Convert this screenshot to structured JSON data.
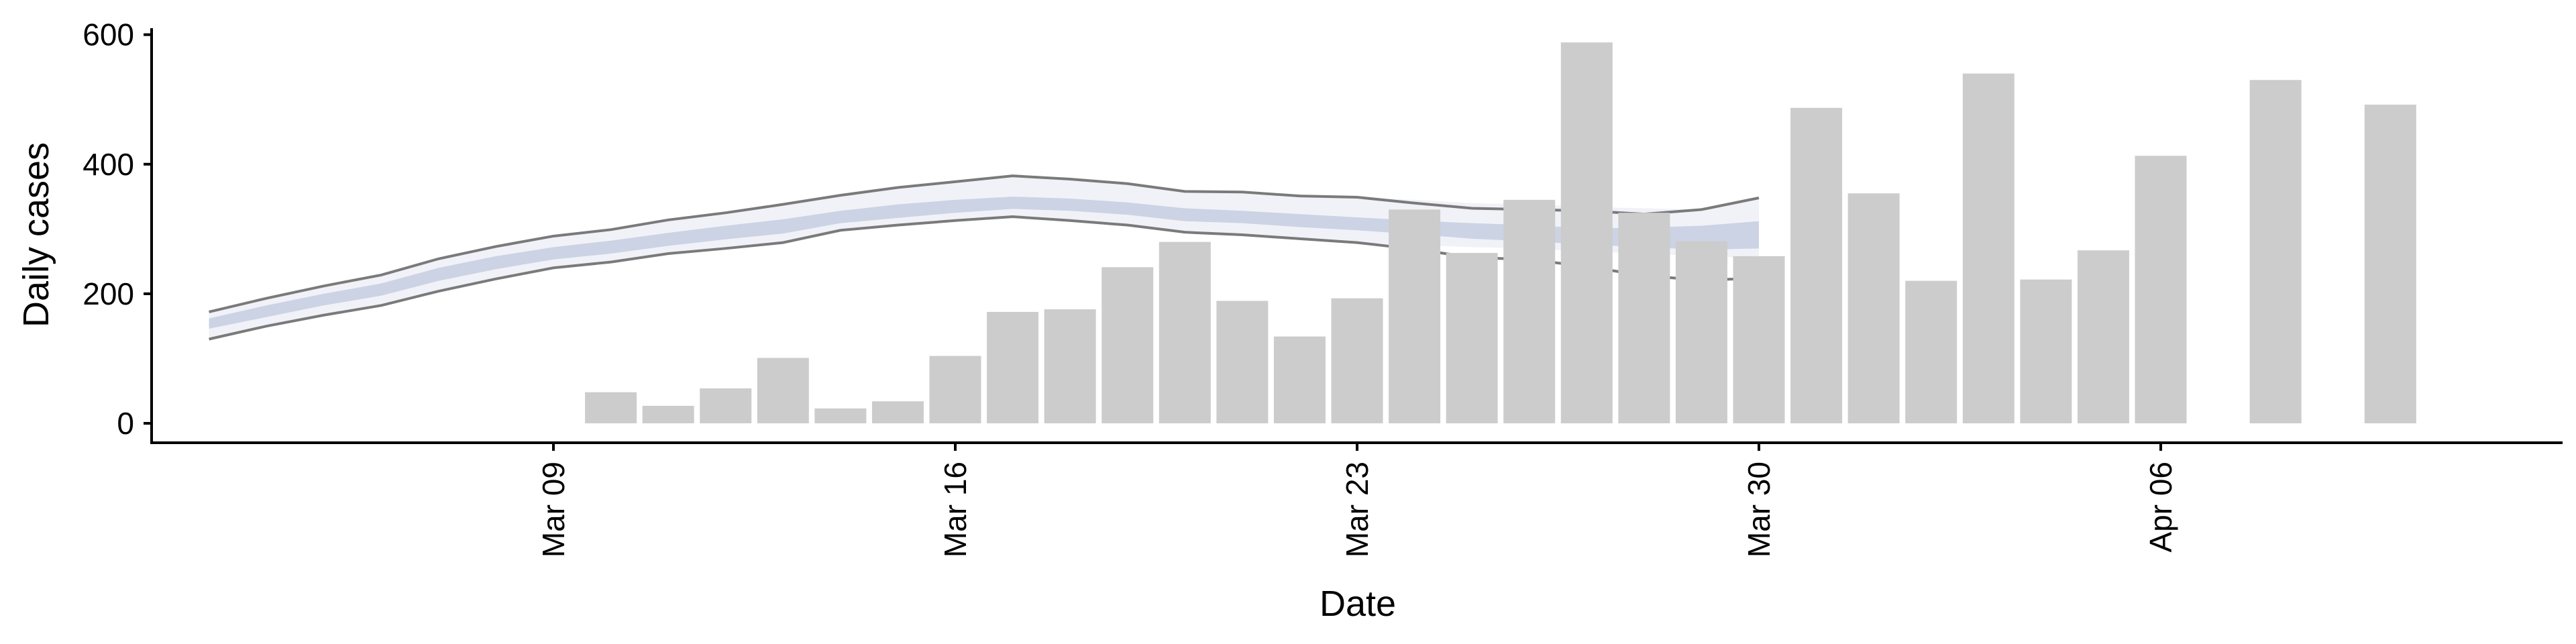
{
  "chart_data": {
    "type": "bar",
    "title": "",
    "xlabel": "Date",
    "ylabel": "Daily cases",
    "ylim": [
      -30,
      610
    ],
    "y_ticks": [
      0,
      200,
      400,
      600
    ],
    "x_ticks": [
      {
        "date": "2020-03-09",
        "label": "Mar 09"
      },
      {
        "date": "2020-03-16",
        "label": "Mar 16"
      },
      {
        "date": "2020-03-23",
        "label": "Mar 23"
      },
      {
        "date": "2020-03-30",
        "label": "Mar 30"
      },
      {
        "date": "2020-04-06",
        "label": "Apr 06"
      }
    ],
    "x_range": [
      "2020-03-02",
      "2020-04-13"
    ],
    "grid": false,
    "legend": "none",
    "colors": {
      "bars": "#cccccc",
      "band_outer": "#eef0f7",
      "band_inner": "#c8cfe2",
      "band_edge": "#7a7a7a"
    },
    "bars": [
      {
        "date": "2020-03-10",
        "value": 48
      },
      {
        "date": "2020-03-11",
        "value": 27
      },
      {
        "date": "2020-03-12",
        "value": 54
      },
      {
        "date": "2020-03-13",
        "value": 101
      },
      {
        "date": "2020-03-14",
        "value": 23
      },
      {
        "date": "2020-03-15",
        "value": 34
      },
      {
        "date": "2020-03-16",
        "value": 104
      },
      {
        "date": "2020-03-17",
        "value": 172
      },
      {
        "date": "2020-03-18",
        "value": 176
      },
      {
        "date": "2020-03-19",
        "value": 241
      },
      {
        "date": "2020-03-20",
        "value": 280
      },
      {
        "date": "2020-03-21",
        "value": 189
      },
      {
        "date": "2020-03-22",
        "value": 134
      },
      {
        "date": "2020-03-23",
        "value": 193
      },
      {
        "date": "2020-03-24",
        "value": 330
      },
      {
        "date": "2020-03-25",
        "value": 263
      },
      {
        "date": "2020-03-26",
        "value": 345
      },
      {
        "date": "2020-03-27",
        "value": 588
      },
      {
        "date": "2020-03-28",
        "value": 325
      },
      {
        "date": "2020-03-29",
        "value": 281
      },
      {
        "date": "2020-03-30",
        "value": 258
      },
      {
        "date": "2020-03-31",
        "value": 487
      },
      {
        "date": "2020-04-01",
        "value": 355
      },
      {
        "date": "2020-04-02",
        "value": 220
      },
      {
        "date": "2020-04-03",
        "value": 540
      },
      {
        "date": "2020-04-04",
        "value": 222
      },
      {
        "date": "2020-04-05",
        "value": 267
      },
      {
        "date": "2020-04-06",
        "value": 413
      },
      {
        "date": "2020-04-08",
        "value": 530
      },
      {
        "date": "2020-04-10",
        "value": 492
      }
    ],
    "band": {
      "dates": [
        "2020-03-03",
        "2020-03-04",
        "2020-03-05",
        "2020-03-06",
        "2020-03-07",
        "2020-03-08",
        "2020-03-09",
        "2020-03-10",
        "2020-03-11",
        "2020-03-12",
        "2020-03-13",
        "2020-03-14",
        "2020-03-15",
        "2020-03-16",
        "2020-03-17",
        "2020-03-18",
        "2020-03-19",
        "2020-03-20",
        "2020-03-21",
        "2020-03-22",
        "2020-03-23",
        "2020-03-24",
        "2020-03-25",
        "2020-03-26",
        "2020-03-27",
        "2020-03-28",
        "2020-03-29",
        "2020-03-30",
        "2020-03-31",
        "2020-04-01"
      ],
      "upper": [
        172,
        193,
        212,
        229,
        254,
        273,
        289,
        299,
        314,
        325,
        338,
        352,
        364,
        373,
        382,
        377,
        370,
        358,
        357,
        351,
        349,
        340,
        332,
        330,
        328,
        323,
        330,
        348,
        null,
        null
      ],
      "lower": [
        130,
        150,
        167,
        182,
        204,
        223,
        240,
        249,
        262,
        270,
        279,
        298,
        306,
        313,
        319,
        313,
        306,
        295,
        291,
        285,
        279,
        269,
        256,
        253,
        242,
        228,
        221,
        224,
        null,
        null
      ],
      "inner_upper": [
        162,
        182,
        200,
        216,
        240,
        258,
        272,
        282,
        294,
        305,
        315,
        328,
        338,
        345,
        350,
        347,
        341,
        332,
        328,
        323,
        318,
        313,
        309,
        306,
        301,
        302,
        305,
        312,
        null,
        null
      ],
      "inner_lower": [
        146,
        164,
        182,
        197,
        220,
        238,
        253,
        262,
        274,
        284,
        293,
        309,
        317,
        325,
        331,
        328,
        322,
        312,
        309,
        303,
        298,
        292,
        285,
        281,
        276,
        272,
        268,
        270,
        null,
        null
      ],
      "outer_upper": [
        172,
        193,
        212,
        229,
        254,
        273,
        289,
        299,
        314,
        325,
        338,
        352,
        364,
        373,
        382,
        377,
        370,
        358,
        357,
        351,
        349,
        345,
        340,
        338,
        334,
        332,
        330,
        348,
        null,
        null
      ],
      "outer_lower": [
        130,
        150,
        167,
        182,
        204,
        223,
        240,
        249,
        262,
        270,
        279,
        298,
        306,
        313,
        319,
        313,
        306,
        295,
        291,
        285,
        279,
        275,
        272,
        270,
        265,
        262,
        258,
        255,
        null,
        null
      ]
    }
  }
}
